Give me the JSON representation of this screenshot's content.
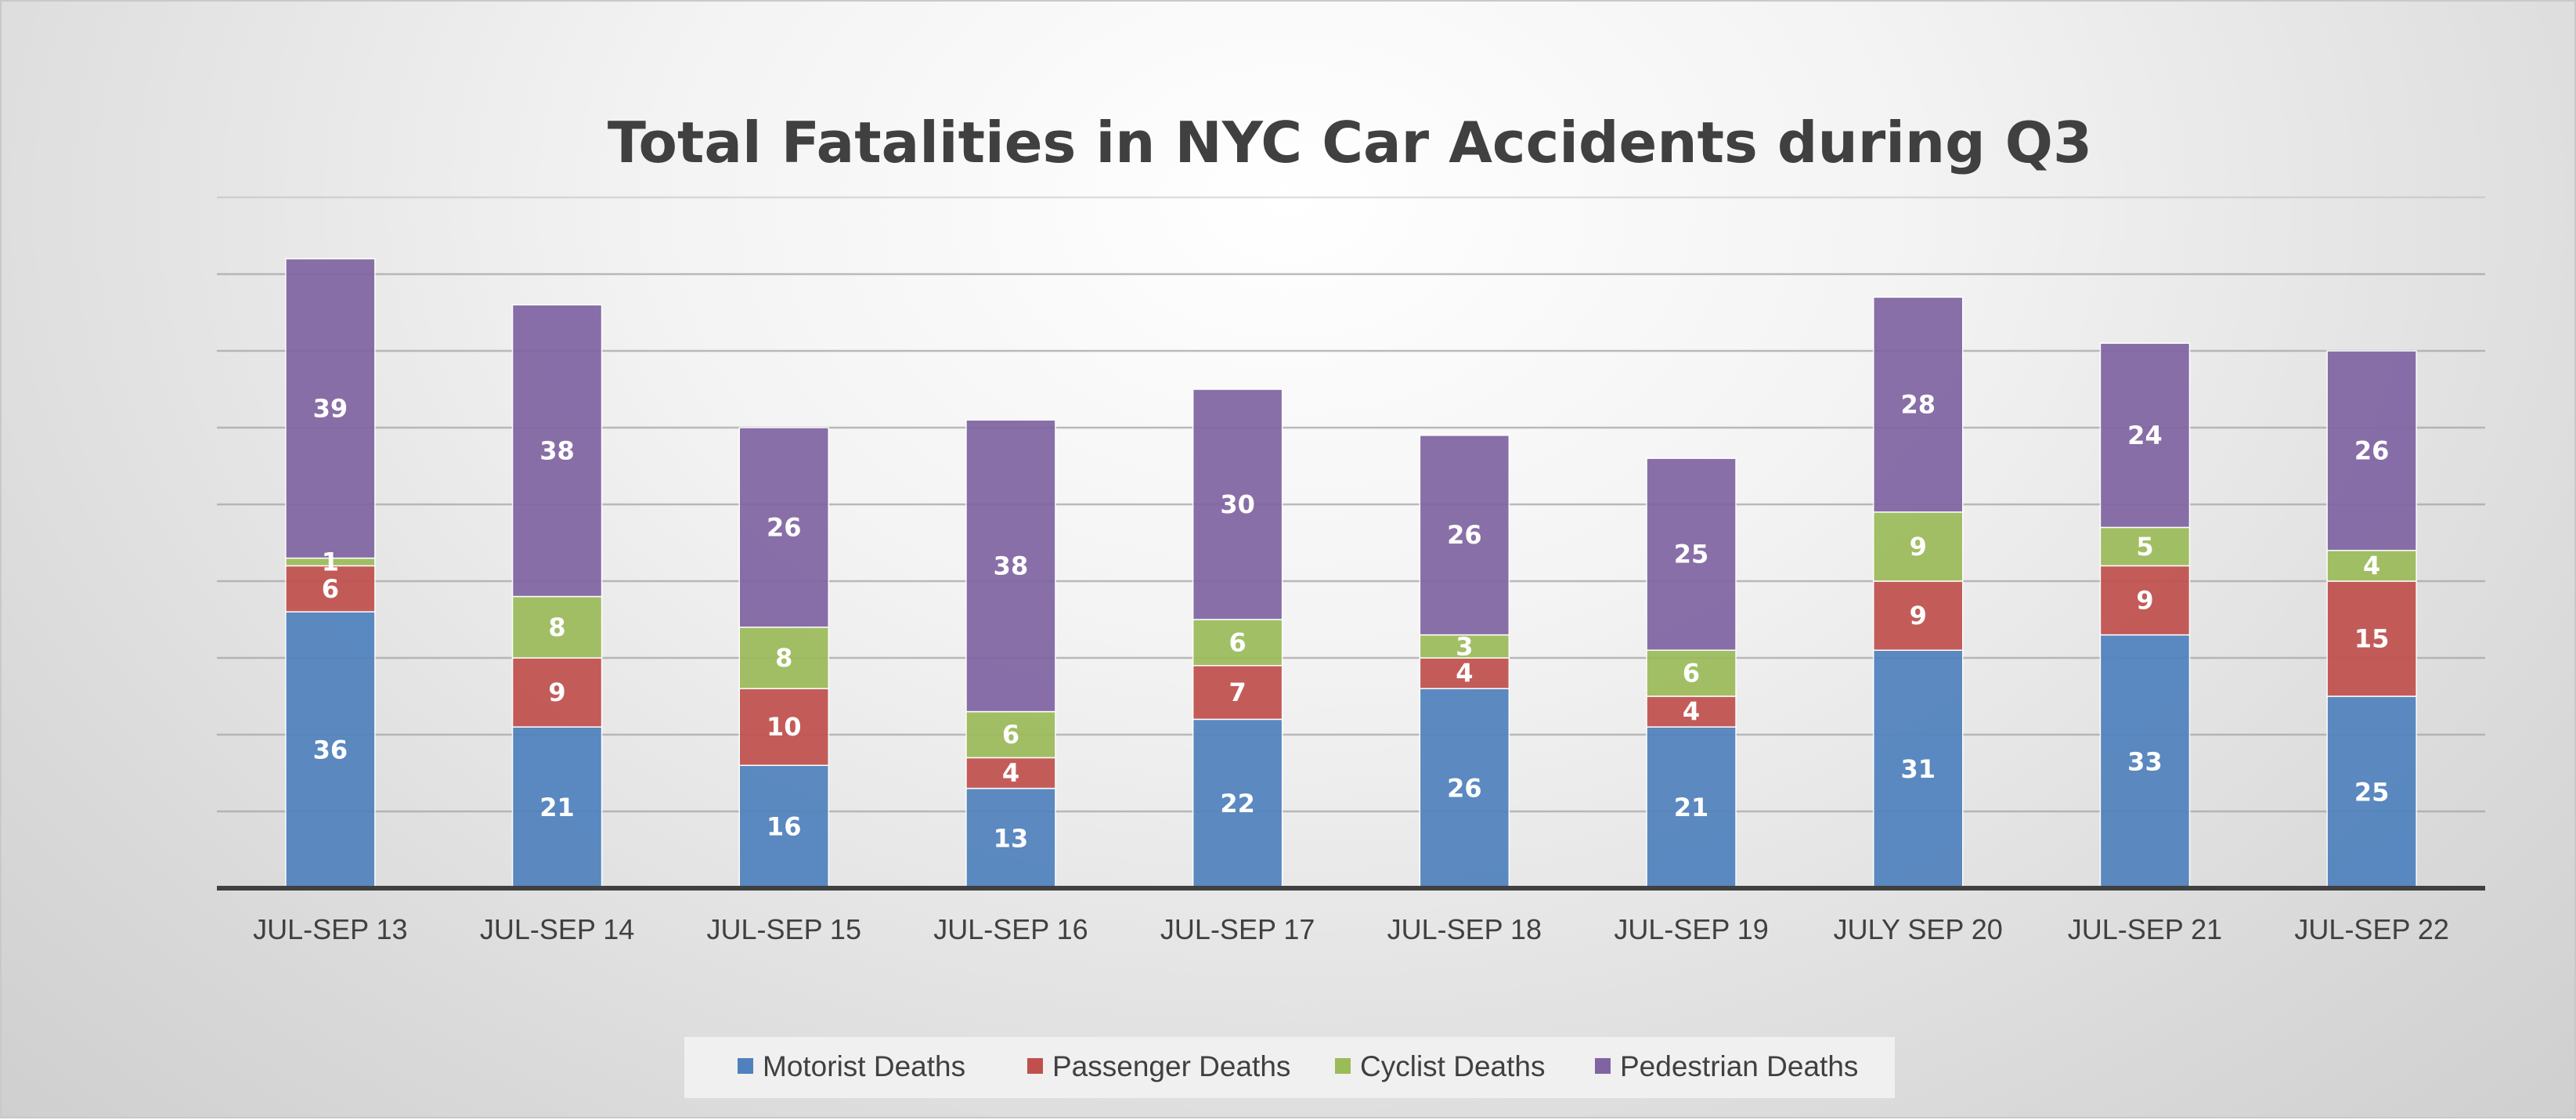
{
  "chart_data": {
    "type": "bar",
    "stacked": true,
    "title": "Total Fatalities in NYC Car Accidents during Q3",
    "xlabel": "",
    "ylabel": "",
    "categories": [
      "JUL-SEP 13",
      "JUL-SEP 14",
      "JUL-SEP 15",
      "JUL-SEP 16",
      "JUL-SEP 17",
      "JUL-SEP 18",
      "JUL-SEP 19",
      "JULY SEP 20",
      "JUL-SEP 21",
      "JUL-SEP 22"
    ],
    "series": [
      {
        "name": "Motorist Deaths",
        "color": "#4f81bd",
        "values": [
          36,
          21,
          16,
          13,
          22,
          26,
          21,
          31,
          33,
          25
        ]
      },
      {
        "name": "Passenger Deaths",
        "color": "#c0504d",
        "values": [
          6,
          9,
          10,
          4,
          7,
          4,
          4,
          9,
          9,
          15
        ]
      },
      {
        "name": "Cyclist Deaths",
        "color": "#9bbb59",
        "values": [
          1,
          8,
          8,
          6,
          6,
          3,
          6,
          9,
          5,
          4
        ]
      },
      {
        "name": "Pedestrian Deaths",
        "color": "#8064a2",
        "values": [
          39,
          38,
          26,
          38,
          30,
          26,
          25,
          28,
          24,
          26
        ]
      }
    ],
    "ylim": [
      0,
      90
    ],
    "ytick_step": 10,
    "grid": true,
    "y_tick_labels_shown": false,
    "data_labels": true,
    "legend_position": "bottom"
  }
}
